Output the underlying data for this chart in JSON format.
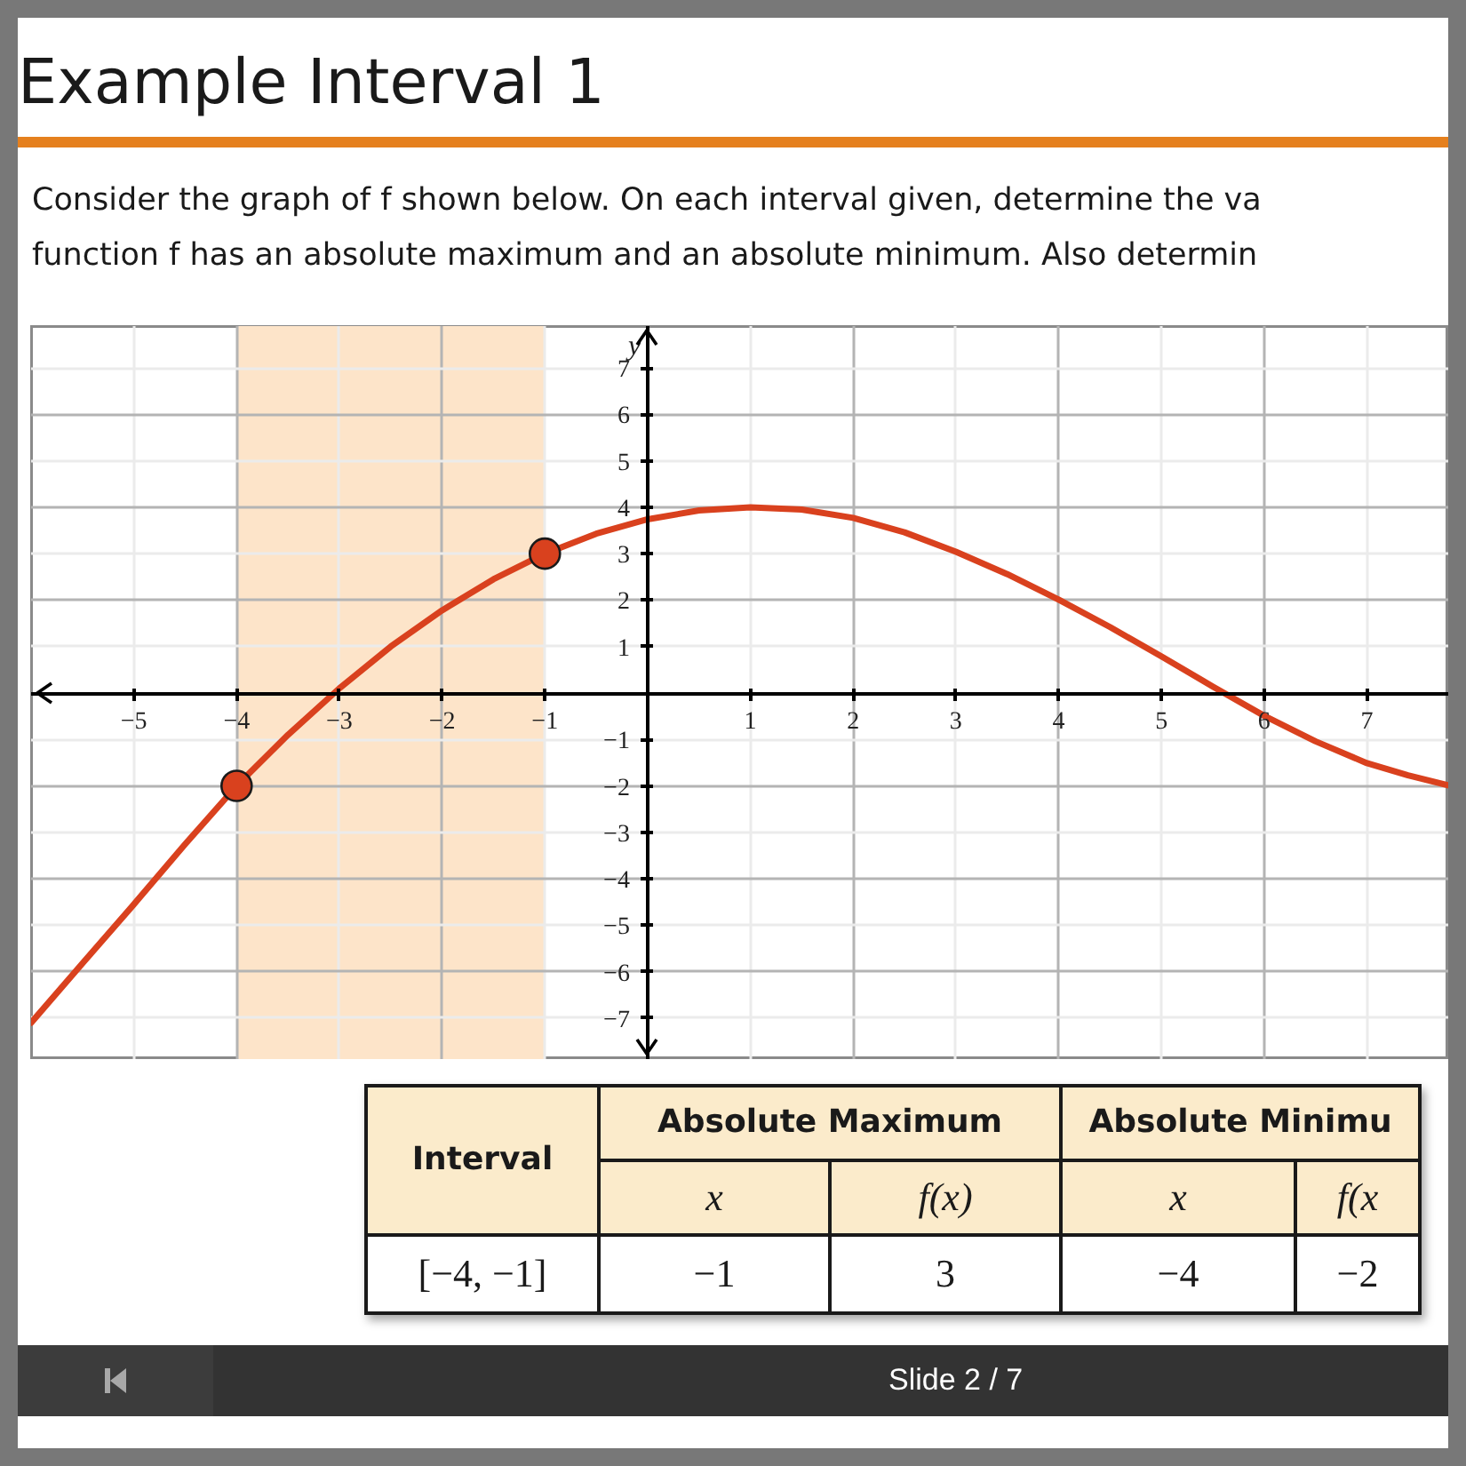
{
  "chart_data": {
    "type": "line",
    "title": "Example Interval 1",
    "subtitle": "Consider the graph of f shown below. On each interval given, determine the va\nfunction f has an absolute maximum and an absolute minimum. Also determin",
    "ylabel": "y",
    "xlim": [
      -6,
      7.8
    ],
    "ylim": [
      -7.9,
      7.9
    ],
    "xticks": [
      -5,
      -4,
      -3,
      -2,
      -1,
      1,
      2,
      3,
      4,
      5,
      6,
      7
    ],
    "yticks": [
      -7,
      -6,
      -5,
      -4,
      -3,
      -2,
      -1,
      1,
      2,
      3,
      4,
      5,
      6,
      7
    ],
    "grid": true,
    "series": [
      {
        "type": "line",
        "color": "#d9411e",
        "x": [
          -6,
          -5.5,
          -5,
          -4.5,
          -4,
          -3.5,
          -3,
          -2.5,
          -2,
          -1.5,
          -1,
          -0.5,
          0,
          0.5,
          1,
          1.5,
          2,
          2.5,
          3,
          3.5,
          4,
          4.5,
          5,
          5.5,
          6,
          6.5,
          7,
          7.4,
          7.8
        ],
        "values": [
          -7.1,
          -5.82,
          -4.55,
          -3.25,
          -2,
          -0.9,
          0.1,
          1.0,
          1.78,
          2.45,
          3,
          3.43,
          3.74,
          3.93,
          4,
          3.95,
          3.77,
          3.46,
          3.04,
          2.56,
          2.01,
          1.42,
          0.79,
          0.14,
          -0.49,
          -1.04,
          -1.51,
          -1.77,
          -1.99
        ]
      },
      {
        "type": "scatter",
        "color": "#d9411e",
        "marker": "circle",
        "x": [
          -4,
          -1
        ],
        "values": [
          -2,
          3
        ]
      }
    ],
    "bands": [
      {
        "axis": "x",
        "from": -4,
        "to": -1,
        "color": "#fde4c9"
      }
    ],
    "annotations": [
      "Interval",
      "Absolute Maximum",
      "Absolute Minimu",
      "x",
      "f(x)",
      "x",
      "f(x",
      "[−4, −1]",
      "−1",
      "3",
      "−4",
      "−2",
      "Slide 2 / 7"
    ]
  }
}
